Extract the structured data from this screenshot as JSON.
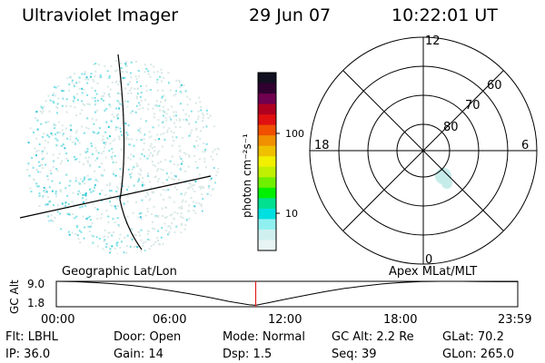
{
  "header": {
    "instrument": "Ultraviolet Imager",
    "date": "29 Jun 07",
    "time": "10:22:01 UT"
  },
  "colorbar": {
    "unit_label": "photon cm⁻²s⁻¹",
    "tick_labels": [
      "100",
      "10"
    ],
    "colors": [
      "#101020",
      "#300030",
      "#700050",
      "#b00020",
      "#e01010",
      "#f05000",
      "#f09000",
      "#f0c000",
      "#f0f000",
      "#c0f000",
      "#70f000",
      "#00f000",
      "#00e090",
      "#00e0e0",
      "#90f0f0",
      "#d0f0f0",
      "#e8f4f4"
    ]
  },
  "left_panel": {
    "caption": "Geographic Lat/Lon",
    "colors": {
      "dots": "#7fe0e6",
      "dots_dense": "#38c8d8",
      "dots_faint": "#d8e8e6"
    }
  },
  "right_panel": {
    "caption": "Apex MLat/MLT",
    "mlt_labels": {
      "top": "12",
      "bottom": "0",
      "left": "18",
      "right": "6"
    },
    "lat_labels": [
      "60",
      "70",
      "80"
    ],
    "blob_color": "#c6ecea"
  },
  "timeline": {
    "axis_label": "GC Alt",
    "y_ticks": [
      "9.0",
      "1.8"
    ],
    "x_ticks": [
      "00:00",
      "06:00",
      "12:00",
      "18:00",
      "23:59"
    ],
    "current_marker_color": "#e02020"
  },
  "chart_data": {
    "type": "line",
    "title": "",
    "xlabel": "",
    "ylabel": "GC Alt",
    "x_unit": "hours UT",
    "xlim": [
      0,
      24
    ],
    "ylim": [
      1.8,
      9.0
    ],
    "series": [
      {
        "x": [
          0,
          1,
          2,
          3,
          4,
          5,
          6,
          7,
          8,
          9,
          10,
          10.37,
          11,
          12,
          13,
          14,
          15,
          16,
          17,
          18,
          19,
          20,
          21,
          22,
          23,
          23.98
        ],
        "values": [
          9.0,
          8.9,
          8.65,
          8.3,
          7.8,
          7.1,
          6.3,
          5.4,
          4.4,
          3.3,
          2.4,
          2.2,
          2.9,
          4.0,
          5.1,
          6.1,
          7.0,
          7.7,
          8.3,
          8.7,
          8.95,
          9.0,
          9.0,
          8.95,
          8.9,
          8.9
        ]
      }
    ],
    "current_time": 10.37
  },
  "footer": {
    "row1": [
      "Flt: LBHL",
      "Door: Open",
      "Mode: Normal",
      "GC Alt: 2.2 Re",
      "GLat:  70.2"
    ],
    "row2": [
      "IP: 36.0",
      "Gain: 14",
      "Dsp:     1.5",
      "Seq: 39",
      "GLon: 265.0"
    ]
  }
}
